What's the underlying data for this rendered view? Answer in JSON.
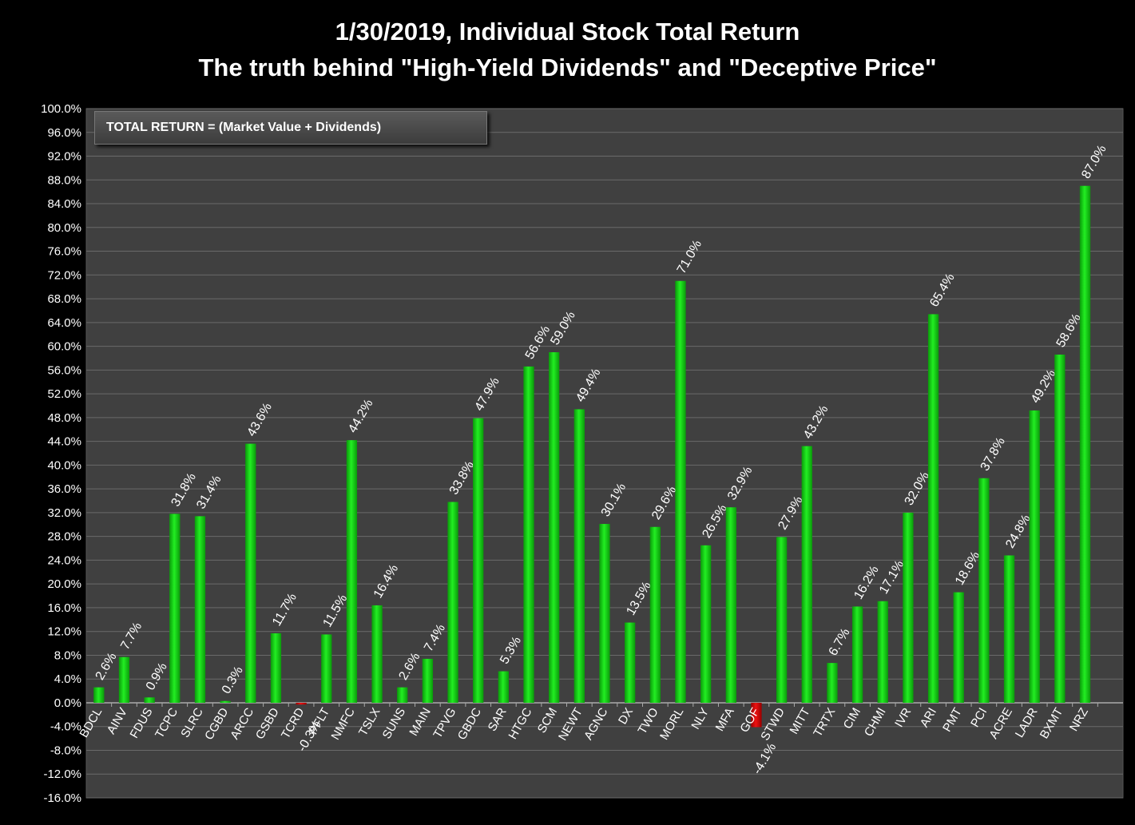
{
  "title_line1": "1/30/2019, Individual Stock Total Return",
  "title_line2": "The truth behind \"High-Yield Dividends\" and \"Deceptive Price\"",
  "note": "TOTAL RETURN = (Market Value + Dividends)",
  "colors": {
    "positive": "#22ee22",
    "negative": "#ee1111",
    "plot_bg": "#404040",
    "grid": "#6a6a6a"
  },
  "chart_data": {
    "type": "bar",
    "ylim": [
      -16,
      100
    ],
    "ytick_step": 4,
    "grid": true,
    "categories": [
      "BDCL",
      "AINV",
      "FDUS",
      "TCPC",
      "SLRC",
      "CGBD",
      "ARCC",
      "GSBD",
      "TCRD",
      "PFLT",
      "NMFC",
      "TSLX",
      "SUNS",
      "MAIN",
      "TPVG",
      "GBDC",
      "SAR",
      "HTGC",
      "SCM",
      "NEWT",
      "AGNC",
      "DX",
      "TWO",
      "MORL",
      "NLY",
      "MFA",
      "GOF",
      "STWD",
      "MITT",
      "TRTX",
      "CIM",
      "CHMI",
      "IVR",
      "ARI",
      "PMT",
      "PCI",
      "ACRE",
      "LADR",
      "BXMT",
      "NRZ"
    ],
    "category_labels": [
      "BDCL",
      "AINV",
      "FDUS",
      "TCPC",
      "SLRC",
      "CGBD",
      "ARCC",
      "GSBD",
      "TCRD",
      "PFLT",
      "NMFC",
      "TSLX",
      "SUNS",
      "MAIN",
      "TPVG",
      "GBDC",
      "SAR",
      "HTGC",
      "SCM",
      "NEWT",
      "AGNC",
      "DX",
      "TWO",
      "MORL",
      "NLY",
      "MFA",
      "GOF",
      "STWD",
      "MITT",
      "TRTX",
      "CIM",
      "CHMI",
      "IVR",
      "ARI",
      "PMT",
      "PCI",
      "ACRE",
      "LADR",
      "BXMT",
      "NRZ"
    ],
    "values": [
      2.6,
      7.7,
      0.9,
      31.8,
      31.4,
      0.3,
      43.6,
      11.7,
      -0.3,
      11.5,
      44.2,
      16.4,
      2.6,
      7.4,
      33.8,
      47.9,
      5.3,
      56.6,
      59.0,
      49.4,
      30.1,
      13.5,
      29.6,
      71.0,
      26.5,
      32.9,
      -4.1,
      27.9,
      43.2,
      6.7,
      16.2,
      17.1,
      32.0,
      65.4,
      18.6,
      37.8,
      24.8,
      49.2,
      58.6,
      87.0
    ],
    "data_labels": [
      "2.6%",
      "7.7%",
      "0.9%",
      "31.8%",
      "31.4%",
      "0.3%",
      "43.6%",
      "11.7%",
      "-0.3%",
      "11.5%",
      "44.2%",
      "16.4%",
      "2.6%",
      "7.4%",
      "33.8%",
      "47.9%",
      "5.3%",
      "56.6%",
      "59.0%",
      "49.4%",
      "30.1%",
      "13.5%",
      "29.6%",
      "71.0%",
      "26.5%",
      "32.9%",
      "-4.1%",
      "27.9%",
      "43.2%",
      "6.7%",
      "16.2%",
      "17.1%",
      "32.0%",
      "65.4%",
      "18.6%",
      "37.8%",
      "24.8%",
      "49.2%",
      "58.6%",
      "87.0%"
    ]
  }
}
